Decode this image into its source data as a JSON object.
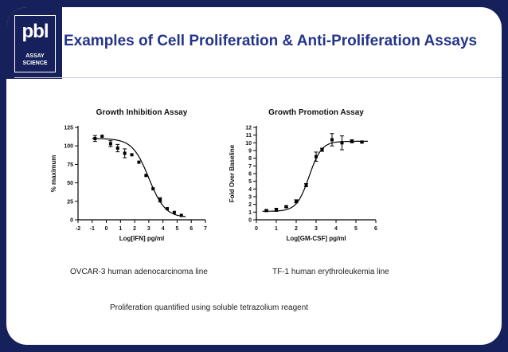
{
  "slide": {
    "title": "Examples of Cell Proliferation & Anti-Proliferation Assays",
    "logo": {
      "mark": "pbl",
      "line1": "ASSAY",
      "line2": "SCIENCE"
    },
    "captions": {
      "left": "OVCAR-3 human adenocarcinoma line",
      "right": "TF-1 human erythroleukemia line",
      "bottom": "Proliferation quantified using soluble tetrazolium reagent"
    }
  },
  "chart_data": [
    {
      "type": "scatter",
      "title": "Growth  Inhibition Assay",
      "xlabel": "Log[IFN] pg/ml",
      "ylabel": "% maximum",
      "xlim": [
        -2,
        7
      ],
      "ylim": [
        0,
        125
      ],
      "xticks": [
        "-2",
        "-1",
        "0",
        "1",
        "2",
        "3",
        "4",
        "5",
        "6",
        "7"
      ],
      "yticks": [
        "0",
        "25",
        "50",
        "75",
        "100",
        "125"
      ],
      "grid": false,
      "curve": "sigmoid",
      "series": [
        {
          "x": [
            -0.8,
            -0.3,
            0.3,
            0.8,
            1.3,
            1.8,
            2.3,
            2.8,
            3.3,
            3.8,
            4.3,
            4.8,
            5.3
          ],
          "y": [
            110,
            113,
            103,
            97,
            90,
            88,
            78,
            60,
            42,
            27,
            15,
            10,
            6
          ],
          "err": [
            4,
            0,
            4,
            5,
            6,
            0,
            0,
            0,
            0,
            3,
            0,
            0,
            0
          ]
        }
      ]
    },
    {
      "type": "scatter",
      "title": "Growth Promotion  Assay",
      "xlabel": "Log[GM-CSF] pg/ml",
      "ylabel": "Fold  Over Baseline",
      "xlim": [
        0,
        6
      ],
      "ylim": [
        0,
        12
      ],
      "xticks": [
        "0",
        "1",
        "2",
        "3",
        "4",
        "5",
        "6"
      ],
      "yticks": [
        "0",
        "1",
        "2",
        "3",
        "4",
        "5",
        "6",
        "7",
        "8",
        "9",
        "10",
        "11",
        "12"
      ],
      "grid": false,
      "curve": "sigmoid",
      "series": [
        {
          "x": [
            0.5,
            1.0,
            1.5,
            2.0,
            2.5,
            3.0,
            3.3,
            3.8,
            4.3,
            4.8,
            5.3
          ],
          "y": [
            1.2,
            1.3,
            1.7,
            2.4,
            4.5,
            8.2,
            9.1,
            10.4,
            10.0,
            10.2,
            10.1
          ],
          "err": [
            0.1,
            0.2,
            0.1,
            0.2,
            0.2,
            0.6,
            0.2,
            0.8,
            0.9,
            0.2,
            0.1
          ]
        }
      ]
    }
  ]
}
